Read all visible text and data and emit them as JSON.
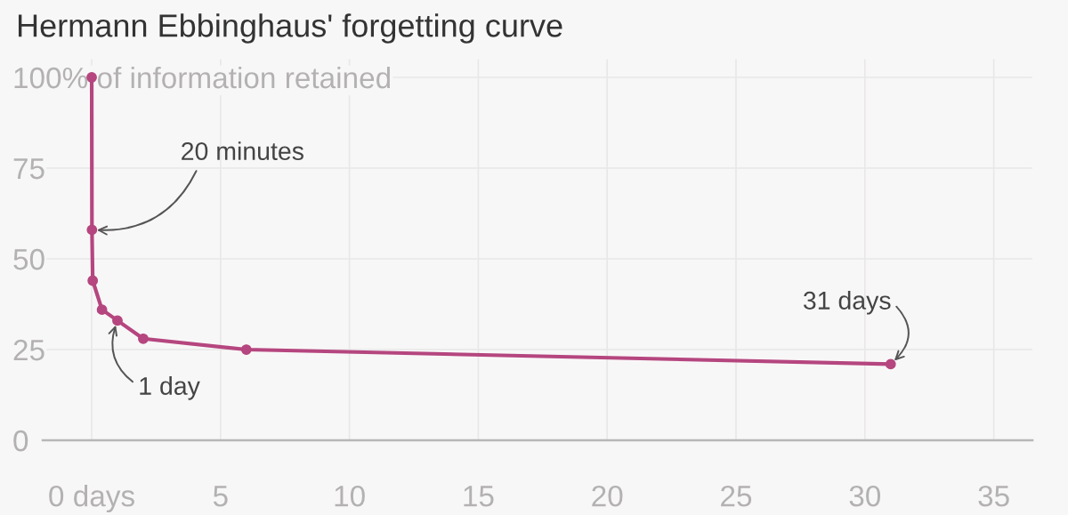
{
  "chart_data": {
    "type": "line",
    "title": "Hermann Ebbinghaus' forgetting curve",
    "x": [
      0,
      0.01,
      0.04,
      0.4,
      1,
      2,
      6,
      31
    ],
    "series": [
      {
        "color": "#b5467f",
        "values": [
          100,
          58,
          44,
          36,
          33,
          28,
          25,
          21
        ]
      }
    ],
    "xlim": [
      -1.9,
      36.5
    ],
    "ylim": [
      0,
      105
    ],
    "xticks": [
      {
        "value": 0,
        "label": "0 days"
      },
      5,
      10,
      15,
      20,
      25,
      30,
      35
    ],
    "yticks": [
      0,
      25,
      50,
      75,
      {
        "value": 100,
        "label": "100% of information retained"
      }
    ],
    "grid": true,
    "marker": "circle",
    "line_style": "solid",
    "annotations": [
      {
        "text": "20 minutes",
        "x": 0.01,
        "y": 58
      },
      {
        "text": "1 day",
        "x": 1,
        "y": 33
      },
      {
        "text": "31 days",
        "x": 31,
        "y": 21
      }
    ]
  }
}
